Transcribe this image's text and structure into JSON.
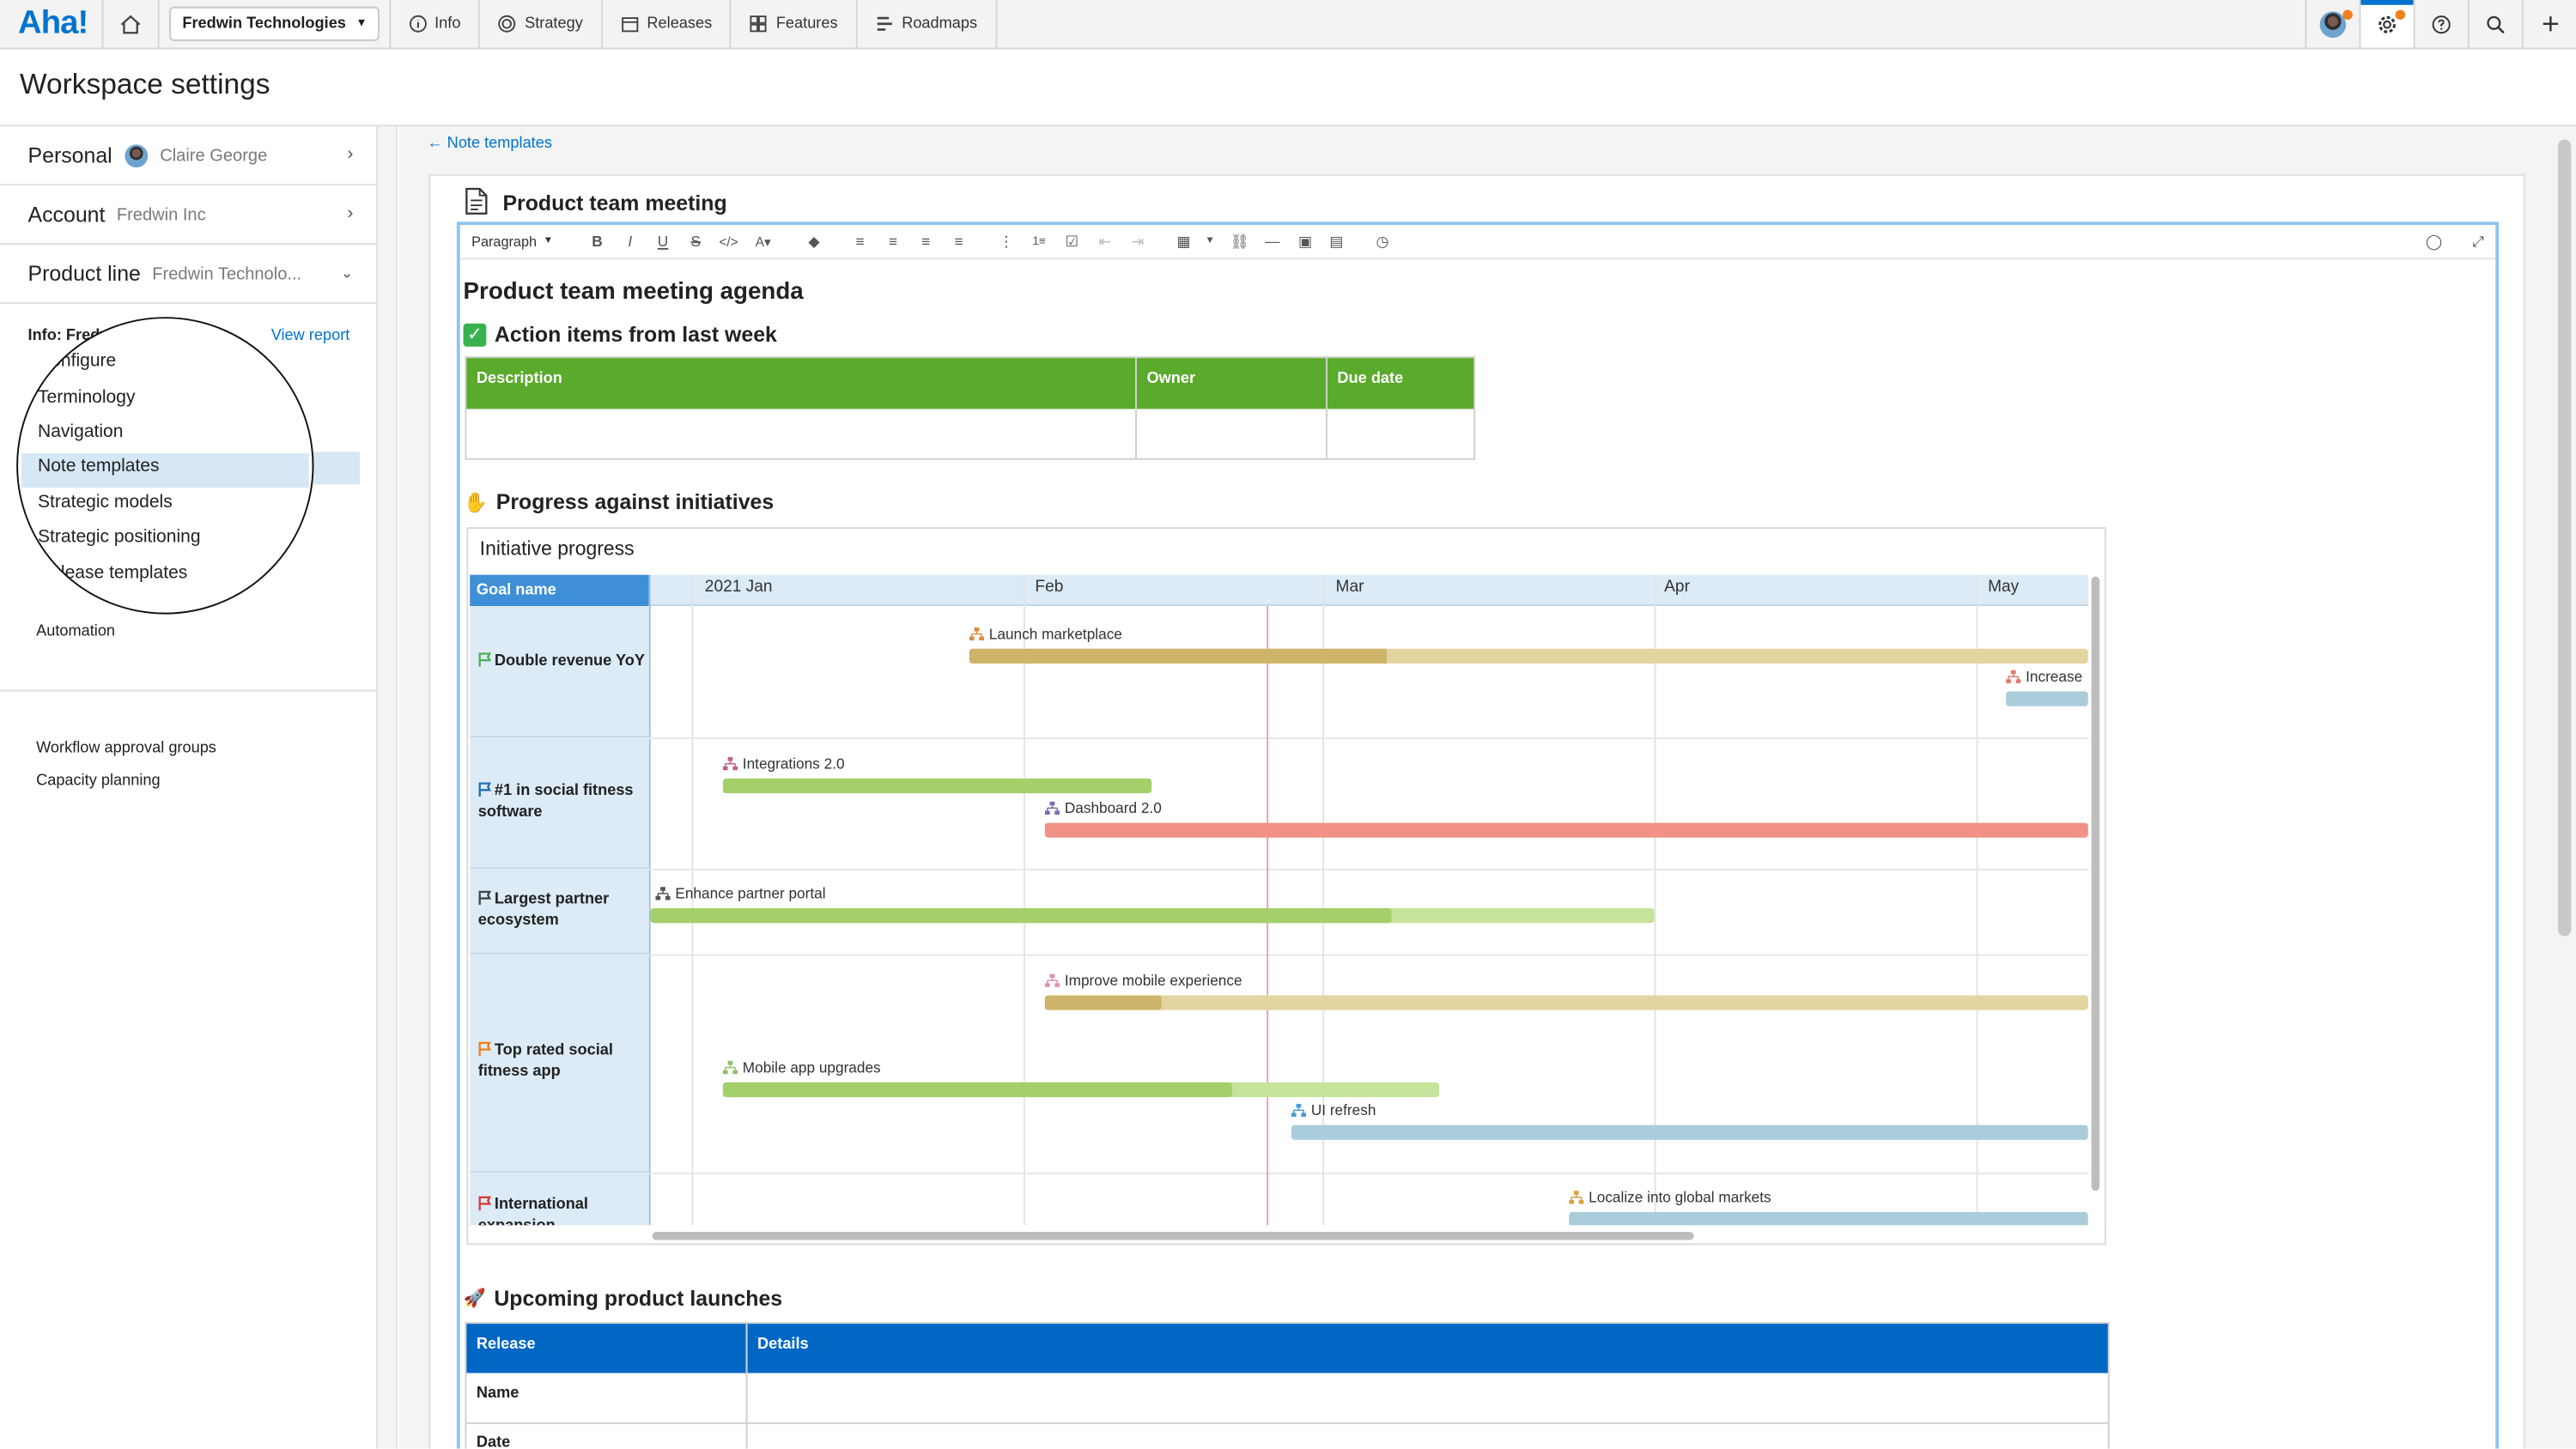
{
  "app": {
    "logo": "Aha!"
  },
  "topnav": {
    "workspace": "Fredwin Technologies",
    "items": [
      {
        "label": "Info",
        "icon": "info-icon"
      },
      {
        "label": "Strategy",
        "icon": "target-icon"
      },
      {
        "label": "Releases",
        "icon": "calendar-icon"
      },
      {
        "label": "Features",
        "icon": "grid-icon"
      },
      {
        "label": "Roadmaps",
        "icon": "roadmap-icon"
      }
    ],
    "right_icons": [
      "avatar",
      "settings-icon",
      "help-icon",
      "search-icon",
      "plus-icon"
    ]
  },
  "page": {
    "title": "Workspace settings"
  },
  "sidebar": {
    "personal": {
      "label": "Personal",
      "value": "Claire George"
    },
    "account": {
      "label": "Account",
      "value": "Fredwin Inc"
    },
    "product_line": {
      "label": "Product line",
      "value": "Fredwin Technolo..."
    },
    "info_heading": "Info: Fredwin Technologies",
    "view_report": "View report",
    "items": [
      {
        "label": "Configure"
      },
      {
        "label": "Terminology"
      },
      {
        "label": "Navigation"
      },
      {
        "label": "Note templates"
      },
      {
        "label": "Strategic models"
      },
      {
        "label": "Strategic positioning"
      },
      {
        "label": "Release templates"
      },
      {
        "label": "Automation"
      },
      {
        "label": "Workflow approval groups"
      },
      {
        "label": "Capacity planning"
      }
    ],
    "selected": "Note templates"
  },
  "main": {
    "breadcrumb": "Note templates",
    "note_title": "Product team meeting",
    "toolbar": {
      "paragraph": "Paragraph"
    },
    "doc": {
      "agenda_title": "Product team meeting agenda",
      "section_action": "Action items from last week",
      "action_table": {
        "headers": [
          "Description",
          "Owner",
          "Due date"
        ]
      },
      "section_progress": "Progress against initiatives",
      "section_launch": "Upcoming product launches",
      "launch_table": {
        "headers": [
          "Release",
          "Details"
        ],
        "rows": [
          "Name",
          "Date"
        ]
      }
    },
    "roadmap": {
      "title": "Initiative progress",
      "goal_header": "Goal name",
      "months": [
        "2021 Jan",
        "Feb",
        "Mar",
        "Apr",
        "May"
      ],
      "goals": [
        {
          "name": "Double revenue YoY",
          "flag_color": "#4caf50"
        },
        {
          "name": "#1 in social fitness software",
          "flag_color": "#1f6fb5"
        },
        {
          "name": "Largest partner ecosystem",
          "flag_color": "#444444"
        },
        {
          "name": "Top rated social fitness app",
          "flag_color": "#f07f1d"
        },
        {
          "name": "International expansion",
          "flag_color": "#d63a3a"
        }
      ],
      "initiatives": [
        {
          "label": "Launch marketplace",
          "color": "#e3d4a0",
          "progress_color": "#cdb46a",
          "icon_color": "#e08a3a"
        },
        {
          "label": "Increase",
          "color": "#a9cddb",
          "progress_color": "#a9cddb",
          "icon_color": "#e07a6a"
        },
        {
          "label": "Integrations 2.0",
          "color": "#a4cf6b",
          "progress_color": "#a4cf6b",
          "icon_color": "#c06090"
        },
        {
          "label": "Dashboard 2.0",
          "color": "#f29186",
          "progress_color": "#f29186",
          "icon_color": "#7a6ab5"
        },
        {
          "label": "Enhance partner portal",
          "color": "#c6e39a",
          "progress_color": "#a4cf6b",
          "icon_color": "#555555"
        },
        {
          "label": "Improve mobile experience",
          "color": "#e3d4a0",
          "progress_color": "#cdb46a",
          "icon_color": "#e090b0"
        },
        {
          "label": "Mobile app upgrades",
          "color": "#c6e39a",
          "progress_color": "#a4cf6b",
          "icon_color": "#8cc06a"
        },
        {
          "label": "UI refresh",
          "color": "#a9cddb",
          "progress_color": "#a9cddb",
          "icon_color": "#4a9ad5"
        },
        {
          "label": "Localize into global markets",
          "color": "#a9cddb",
          "progress_color": "#a9cddb",
          "icon_color": "#d9a040"
        }
      ]
    }
  }
}
